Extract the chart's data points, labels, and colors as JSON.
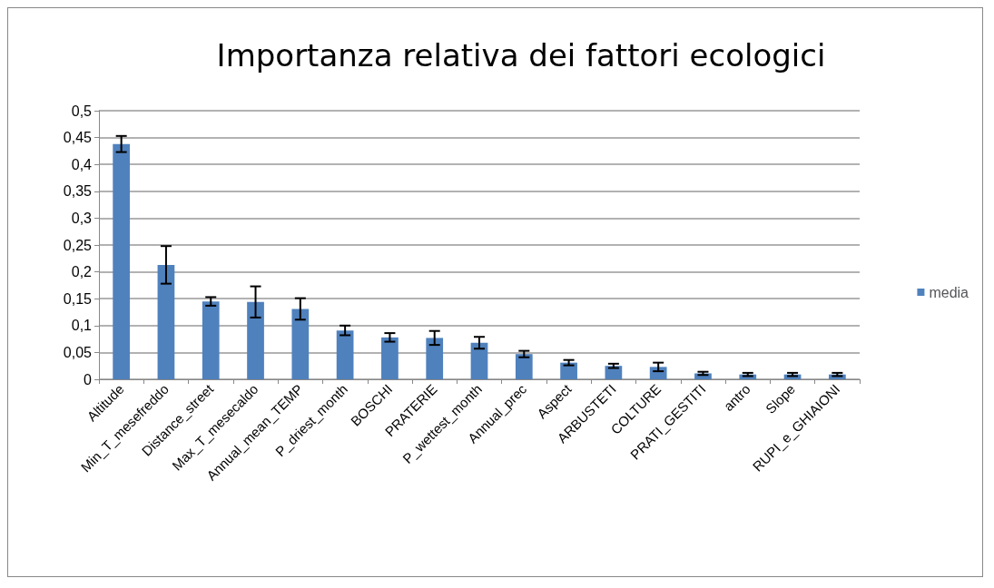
{
  "chart_data": {
    "type": "bar",
    "title": "Importanza relativa dei fattori ecologici",
    "categories": [
      "Altitude",
      "Min_T_mesefreddo",
      "Distance_street",
      "Max_T_mesecaldo",
      "Annual_mean_TEMP",
      "P_driest_month",
      "BOSCHI",
      "PRATERIE",
      "P_wettest_month",
      "Annual_prec",
      "Aspect",
      "ARBUSTETI",
      "COLTURE",
      "PRATI_GESTITI",
      "antro",
      "Slope",
      "RUPI_e_GHIAIONI"
    ],
    "series": [
      {
        "name": "media",
        "color": "#4f81bd",
        "values": [
          0.438,
          0.213,
          0.145,
          0.144,
          0.131,
          0.091,
          0.078,
          0.077,
          0.068,
          0.047,
          0.031,
          0.025,
          0.023,
          0.011,
          0.009,
          0.009,
          0.009
        ],
        "errors": [
          0.015,
          0.035,
          0.008,
          0.029,
          0.02,
          0.009,
          0.008,
          0.013,
          0.011,
          0.006,
          0.005,
          0.004,
          0.008,
          0.003,
          0.003,
          0.003,
          0.003
        ]
      }
    ],
    "ylim": [
      0,
      0.5
    ],
    "yticks": [
      {
        "value": 0,
        "label": "0"
      },
      {
        "value": 0.05,
        "label": "0,05"
      },
      {
        "value": 0.1,
        "label": "0,1"
      },
      {
        "value": 0.15,
        "label": "0,15"
      },
      {
        "value": 0.2,
        "label": "0,2"
      },
      {
        "value": 0.25,
        "label": "0,25"
      },
      {
        "value": 0.3,
        "label": "0,3"
      },
      {
        "value": 0.35,
        "label": "0,35"
      },
      {
        "value": 0.4,
        "label": "0,4"
      },
      {
        "value": 0.45,
        "label": "0,45"
      },
      {
        "value": 0.5,
        "label": "0,5"
      }
    ],
    "grid": "y",
    "legend": "right"
  }
}
